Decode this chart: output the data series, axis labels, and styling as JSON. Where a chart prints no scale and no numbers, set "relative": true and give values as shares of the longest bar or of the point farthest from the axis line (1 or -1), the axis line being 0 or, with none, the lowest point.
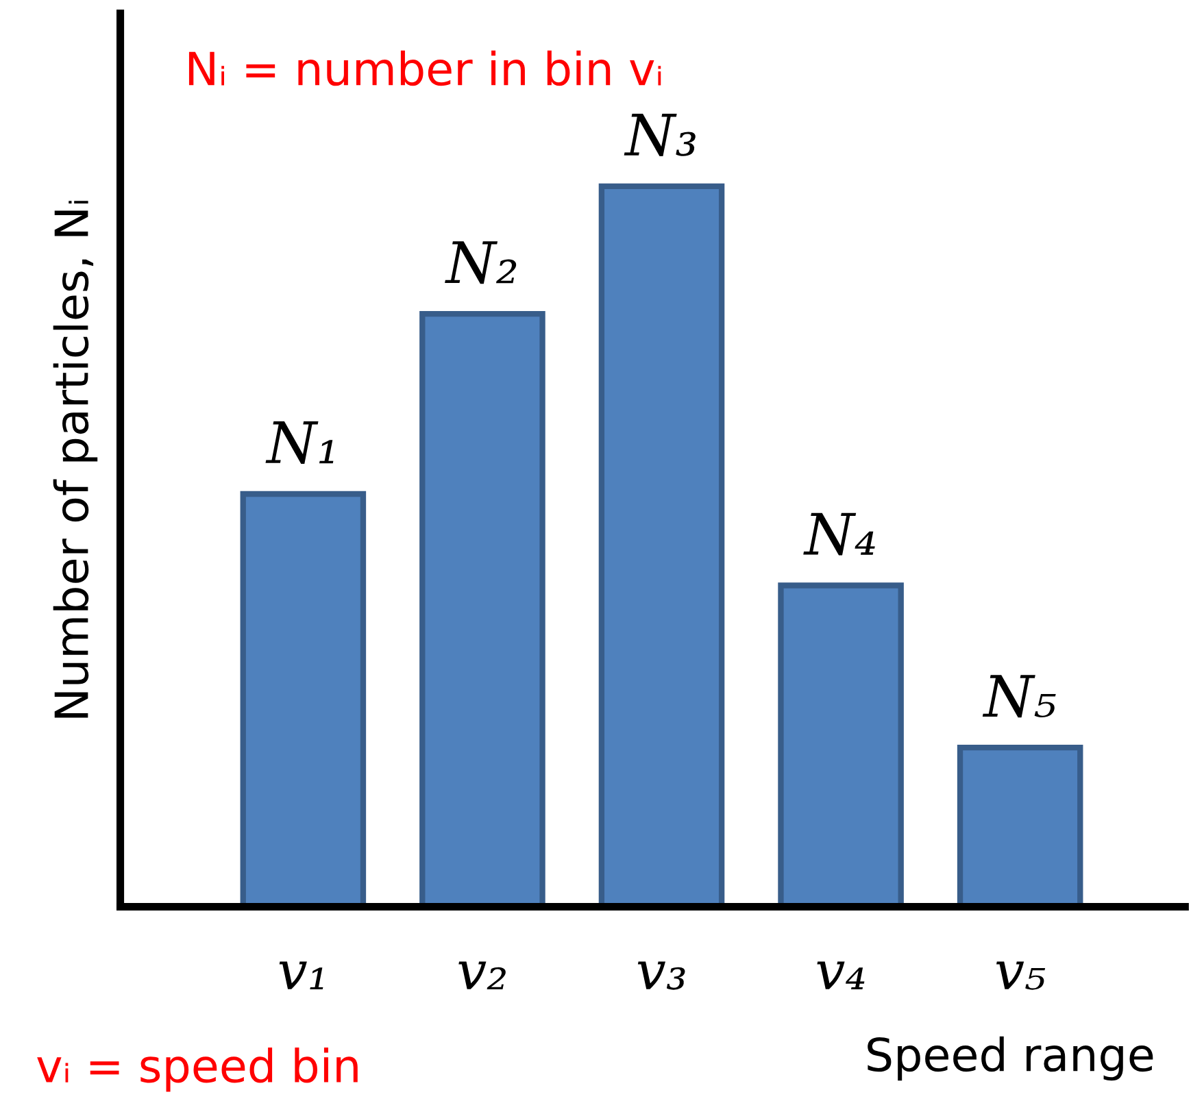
{
  "chart_data": {
    "type": "bar",
    "relative": true,
    "color": "#4f81bd",
    "categories": [
      "v₁",
      "v₂",
      "v₃",
      "v₄",
      "v₅"
    ],
    "values": [
      0.573,
      0.823,
      1,
      0.446,
      0.221
    ],
    "ylabel": "Number of particles, Nᵢ",
    "xlabel": "Speed range",
    "annotations": [
      {
        "text": "N₁",
        "x": "v₁",
        "y": 0.573
      },
      {
        "text": "N₂",
        "x": "v₂",
        "y": 0.823
      },
      {
        "text": "N₃",
        "x": "v₃",
        "y": 1
      },
      {
        "text": "N₄",
        "x": "v₄",
        "y": 0.446
      },
      {
        "text": "N₅",
        "x": "v₅",
        "y": 0.221
      },
      "Nᵢ = number in bin vᵢ",
      "vᵢ = speed bin"
    ]
  }
}
